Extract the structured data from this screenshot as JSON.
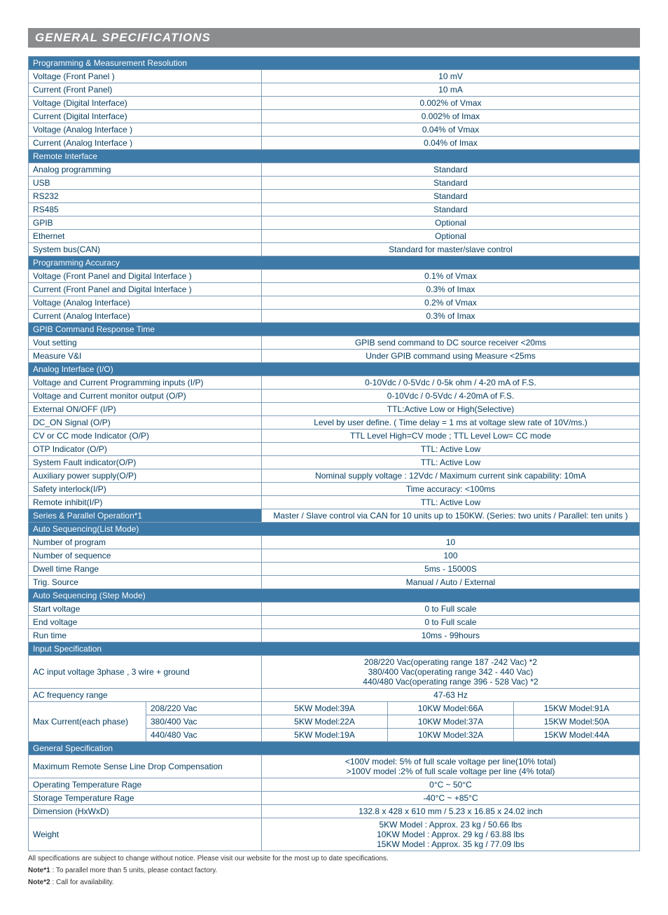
{
  "title": "GENERAL SPECIFICATIONS",
  "sections": {
    "prog_res": {
      "header": "Programming & Measurement Resolution",
      "rows": [
        {
          "label": "Voltage (Front Panel )",
          "value": "10 mV"
        },
        {
          "label": "Current (Front Panel)",
          "value": "10 mA"
        },
        {
          "label": "Voltage (Digital Interface)",
          "value": "0.002% of Vmax"
        },
        {
          "label": "Current (Digital Interface)",
          "value": "0.002% of Imax"
        },
        {
          "label": "Voltage (Analog Interface )",
          "value": "0.04% of Vmax"
        },
        {
          "label": "Current (Analog Interface )",
          "value": "0.04% of Imax"
        }
      ]
    },
    "remote": {
      "header": "Remote Interface",
      "rows": [
        {
          "label": "Analog programming",
          "value": "Standard"
        },
        {
          "label": "USB",
          "value": "Standard"
        },
        {
          "label": "RS232",
          "value": "Standard"
        },
        {
          "label": "RS485",
          "value": "Standard"
        },
        {
          "label": "GPIB",
          "value": "Optional"
        },
        {
          "label": "Ethernet",
          "value": "Optional"
        },
        {
          "label": "System bus(CAN)",
          "value": "Standard for master/slave control"
        }
      ]
    },
    "prog_acc": {
      "header": "Programming Accuracy",
      "rows": [
        {
          "label": "Voltage (Front Panel and Digital Interface )",
          "value": "0.1% of Vmax"
        },
        {
          "label": "Current (Front Panel and Digital Interface )",
          "value": "0.3% of Imax"
        },
        {
          "label": "Voltage (Analog Interface)",
          "value": "0.2% of Vmax"
        },
        {
          "label": "Current (Analog Interface)",
          "value": "0.3% of Imax"
        }
      ]
    },
    "gpib": {
      "header": "GPIB Command Response Time",
      "rows": [
        {
          "label": "Vout setting",
          "value": "GPIB send command to DC source receiver <20ms"
        },
        {
          "label": "Measure V&I",
          "value": "Under GPIB command using Measure <25ms"
        }
      ]
    },
    "analog_io": {
      "header": "Analog Interface (I/O)",
      "rows": [
        {
          "label": "Voltage and Current Programming inputs (I/P)",
          "value": "0-10Vdc / 0-5Vdc / 0-5k ohm / 4-20 mA of F.S."
        },
        {
          "label": "Voltage and Current monitor output (O/P)",
          "value": "0-10Vdc / 0-5Vdc / 4-20mA of F.S."
        },
        {
          "label": "External ON/OFF (I/P)",
          "value": "TTL:Active Low or High(Selective)"
        },
        {
          "label": "DC_ON Signal (O/P)",
          "value": "Level by user define. ( Time delay = 1 ms at voltage slew rate of 10V/ms.)"
        },
        {
          "label": "CV or CC mode Indicator (O/P)",
          "value": "TTL Level High=CV mode ; TTL Level Low= CC mode"
        },
        {
          "label": "OTP Indicator (O/P)",
          "value": "TTL: Active Low"
        },
        {
          "label": "System Fault indicator(O/P)",
          "value": "TTL: Active Low"
        },
        {
          "label": "Auxiliary power supply(O/P)",
          "value": "Nominal supply voltage : 12Vdc / Maximum current sink capability: 10mA"
        },
        {
          "label": "Safety interlock(I/P)",
          "value": "Time accuracy: <100ms"
        },
        {
          "label": "Remote inhibit(I/P)",
          "value": "TTL: Active Low"
        }
      ]
    },
    "series_parallel": {
      "label": "Series & Parallel Operation*1",
      "value": "Master / Slave control via CAN for 10 units up to 150KW. (Series: two units / Parallel: ten units )"
    },
    "auto_list": {
      "header": "Auto Sequencing(List Mode)",
      "rows": [
        {
          "label": "Number of program",
          "value": "10"
        },
        {
          "label": "Number of sequence",
          "value": "100"
        },
        {
          "label": "Dwell time Range",
          "value": "5ms - 15000S"
        },
        {
          "label": "Trig. Source",
          "value": "Manual / Auto / External"
        }
      ]
    },
    "auto_step": {
      "header": "Auto Sequencing (Step Mode)",
      "rows": [
        {
          "label": "Start voltage",
          "value": "0 to Full scale"
        },
        {
          "label": "End voltage",
          "value": "0 to Full scale"
        },
        {
          "label": "Run time",
          "value": "10ms - 99hours"
        }
      ]
    },
    "input_spec": {
      "header": "Input Specification",
      "ac_input_label": "AC input voltage 3phase , 3 wire + ground",
      "ac_input_value": "208/220 Vac(operating range 187 -242 Vac) *2\n380/400 Vac(operating range 342 - 440 Vac)\n440/480 Vac(operating range 396 - 528 Vac) *2",
      "ac_freq_label": "AC frequency range",
      "ac_freq_value": "47-63 Hz",
      "max_current_label": "Max Current(each phase)",
      "max_current_rows": [
        {
          "volt": "208/220 Vac",
          "c1": "5KW Model:39A",
          "c2": "10KW Model:66A",
          "c3": "15KW Model:91A"
        },
        {
          "volt": "380/400 Vac",
          "c1": "5KW Model:22A",
          "c2": "10KW Model:37A",
          "c3": "15KW Model:50A"
        },
        {
          "volt": "440/480 Vac",
          "c1": "5KW Model:19A",
          "c2": "10KW Model:32A",
          "c3": "15KW Model:44A"
        }
      ]
    },
    "general_spec": {
      "header": "General Specification",
      "remote_sense_label": "Maximum Remote Sense Line Drop Compensation",
      "remote_sense_value": "<100V model: 5% of full scale voltage per line(10% total)\n>100V model :2% of full scale voltage per line (4% total)",
      "rows": [
        {
          "label": "Operating Temperature Rage",
          "value": "0°C ~ 50°C"
        },
        {
          "label": "Storage Temperature Rage",
          "value": "-40°C ~ +85°C"
        },
        {
          "label": "Dimension (HxWxD)",
          "value": "132.8 x 428 x 610 mm / 5.23 x 16.85 x 24.02 inch"
        }
      ],
      "weight_label": "Weight",
      "weight_value": "5KW Model : Approx. 23 kg / 50.66 lbs\n10KW Model : Approx. 29 kg / 63.88 lbs\n15KW Model : Approx. 35 kg / 77.09 lbs"
    }
  },
  "footer": {
    "line1": "All specifications are subject to change without notice. Please visit our website for the most up to date specifications.",
    "line2a": "Note*1",
    "line2b": " : To parallel more than 5 units, please contact factory.",
    "line3a": "Note*2",
    "line3b": " : Call for availability."
  }
}
